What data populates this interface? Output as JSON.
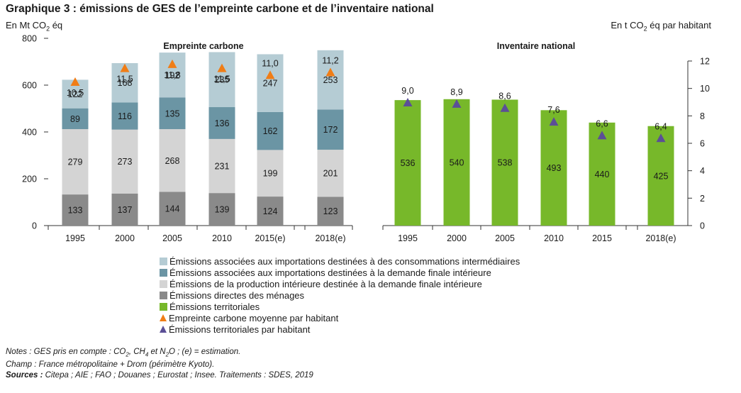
{
  "header": {
    "title": "Graphique 3 : émissions de GES de l’empreinte carbone et de l’inventaire national",
    "unit_left": {
      "pre": "En Mt CO",
      "sub": "2",
      "post": " éq"
    },
    "unit_right": {
      "pre": "En t CO",
      "sub": "2",
      "post": " éq par habitant"
    }
  },
  "chart_data": [
    {
      "type": "bar",
      "stacked": true,
      "title": "Empreinte carbone",
      "categories": [
        "1995",
        "2000",
        "2005",
        "2010",
        "2015(e)",
        "2018(e)"
      ],
      "y_axis": {
        "side": "left",
        "ylim": [
          0,
          800
        ],
        "ticks": [
          0,
          200,
          400,
          600,
          800
        ]
      },
      "series": [
        {
          "name": "Émissions directes des ménages",
          "color": "#8a8a8a",
          "values": [
            133,
            137,
            144,
            139,
            124,
            123
          ]
        },
        {
          "name": "Émissions de la production intérieure destinée à la demande finale intérieure",
          "color": "#d4d4d4",
          "values": [
            279,
            273,
            268,
            231,
            199,
            201
          ]
        },
        {
          "name": "Émissions associées aux importations destinées à la demande finale intérieure",
          "color": "#6b95a4",
          "values": [
            89,
            116,
            135,
            136,
            162,
            172
          ]
        },
        {
          "name": "Émissions associées aux importations destinées à des consommations intermédiaires",
          "color": "#b5ccd4",
          "values": [
            122,
            168,
            192,
            235,
            247,
            253
          ]
        }
      ],
      "markers": {
        "name": "Empreinte carbone moyenne par habitant",
        "color": "#f07d16",
        "axis": "right",
        "values": [
          10.5,
          11.5,
          11.8,
          11.5,
          11.0,
          11.2
        ],
        "labels": [
          "10,5",
          "11,5",
          "11,8",
          "11,5",
          "11,0",
          "11,2"
        ]
      }
    },
    {
      "type": "bar",
      "title": "Inventaire national",
      "categories": [
        "1995",
        "2000",
        "2005",
        "2010",
        "2015",
        "2018(e)"
      ],
      "y_axis": {
        "side": "right",
        "ylim": [
          0,
          12
        ],
        "ticks": [
          0,
          2,
          4,
          6,
          8,
          10,
          12
        ]
      },
      "series": [
        {
          "name": "Émissions territoriales",
          "color": "#77b82a",
          "values": [
            536,
            540,
            538,
            493,
            440,
            425
          ]
        }
      ],
      "markers": {
        "name": "Émissions territoriales par habitant",
        "color": "#5b4f96",
        "axis": "right",
        "values": [
          9.0,
          8.9,
          8.6,
          7.6,
          6.6,
          6.4
        ],
        "labels": [
          "9,0",
          "8,9",
          "8,6",
          "7,6",
          "6,6",
          "6,4"
        ]
      }
    }
  ],
  "legend": [
    {
      "label": "Émissions associées aux importations destinées à des consommations intermédiaires",
      "color": "#b5ccd4",
      "shape": "square"
    },
    {
      "label": "Émissions associées aux importations destinées à la demande finale intérieure",
      "color": "#6b95a4",
      "shape": "square"
    },
    {
      "label": "Émissions de la production intérieure destinée à la demande finale intérieure",
      "color": "#d4d4d4",
      "shape": "square"
    },
    {
      "label": "Émissions directes des ménages",
      "color": "#8a8a8a",
      "shape": "square"
    },
    {
      "label": "Émissions territoriales",
      "color": "#77b82a",
      "shape": "square"
    },
    {
      "label": "Empreinte carbone moyenne par habitant",
      "color": "#f07d16",
      "shape": "triangle"
    },
    {
      "label": "Émissions territoriales par habitant",
      "color": "#5b4f96",
      "shape": "triangle"
    }
  ],
  "notes": {
    "line1": {
      "a": "Notes : GES pris en compte : CO",
      "s1": "2",
      "b": ", CH",
      "s2": "4",
      "c": " et N",
      "s3": "2",
      "d": "O ; (e) = estimation."
    },
    "line2": "Champ : France métropolitaine + Drom (périmètre Kyoto).",
    "line3": {
      "bold": "Sources :",
      "rest": " Citepa ; AIE ; FAO ; Douanes ; Eurostat ; Insee. Traitements : SDES, 2019"
    }
  }
}
